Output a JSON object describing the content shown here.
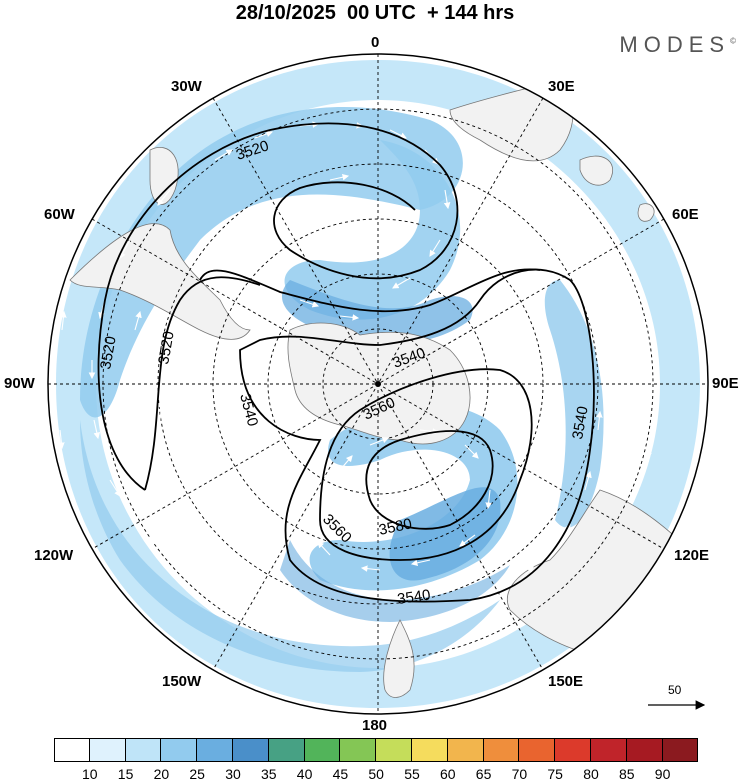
{
  "title": "28/10/2025  00 UTC  + 144 hrs",
  "brand": "MODES",
  "brand_mark": "©",
  "longitude_labels": {
    "top": "0",
    "bottom": "180",
    "left": "90W",
    "right": "90E",
    "n30w": "30W",
    "n30e": "30E",
    "n60w": "60W",
    "n60e": "60E",
    "s120w": "120W",
    "s120e": "120E",
    "s150w": "150W",
    "s150e": "150E"
  },
  "contour_labels": {
    "c1": "3520",
    "c2": "3520",
    "c3": "3520",
    "c4": "3540",
    "c5": "3540",
    "c6": "3540",
    "c7": "3540",
    "c8": "3560",
    "c9": "3560",
    "c10": "3580"
  },
  "vector_reference": "50",
  "colorbar": {
    "labels": [
      "10",
      "15",
      "20",
      "25",
      "30",
      "35",
      "40",
      "45",
      "50",
      "55",
      "60",
      "65",
      "70",
      "75",
      "80",
      "85",
      "90"
    ],
    "colors": [
      "#ffffff",
      "#dff2fd",
      "#bfe4f8",
      "#92cbee",
      "#6aaee0",
      "#4a8fc9",
      "#47a184",
      "#52b45a",
      "#84c655",
      "#c5dd5a",
      "#f5dc5d",
      "#f2b54d",
      "#ef8e3c",
      "#e9642f",
      "#dc3a2b",
      "#c0242a",
      "#a61a22",
      "#8b1a1f"
    ]
  }
}
